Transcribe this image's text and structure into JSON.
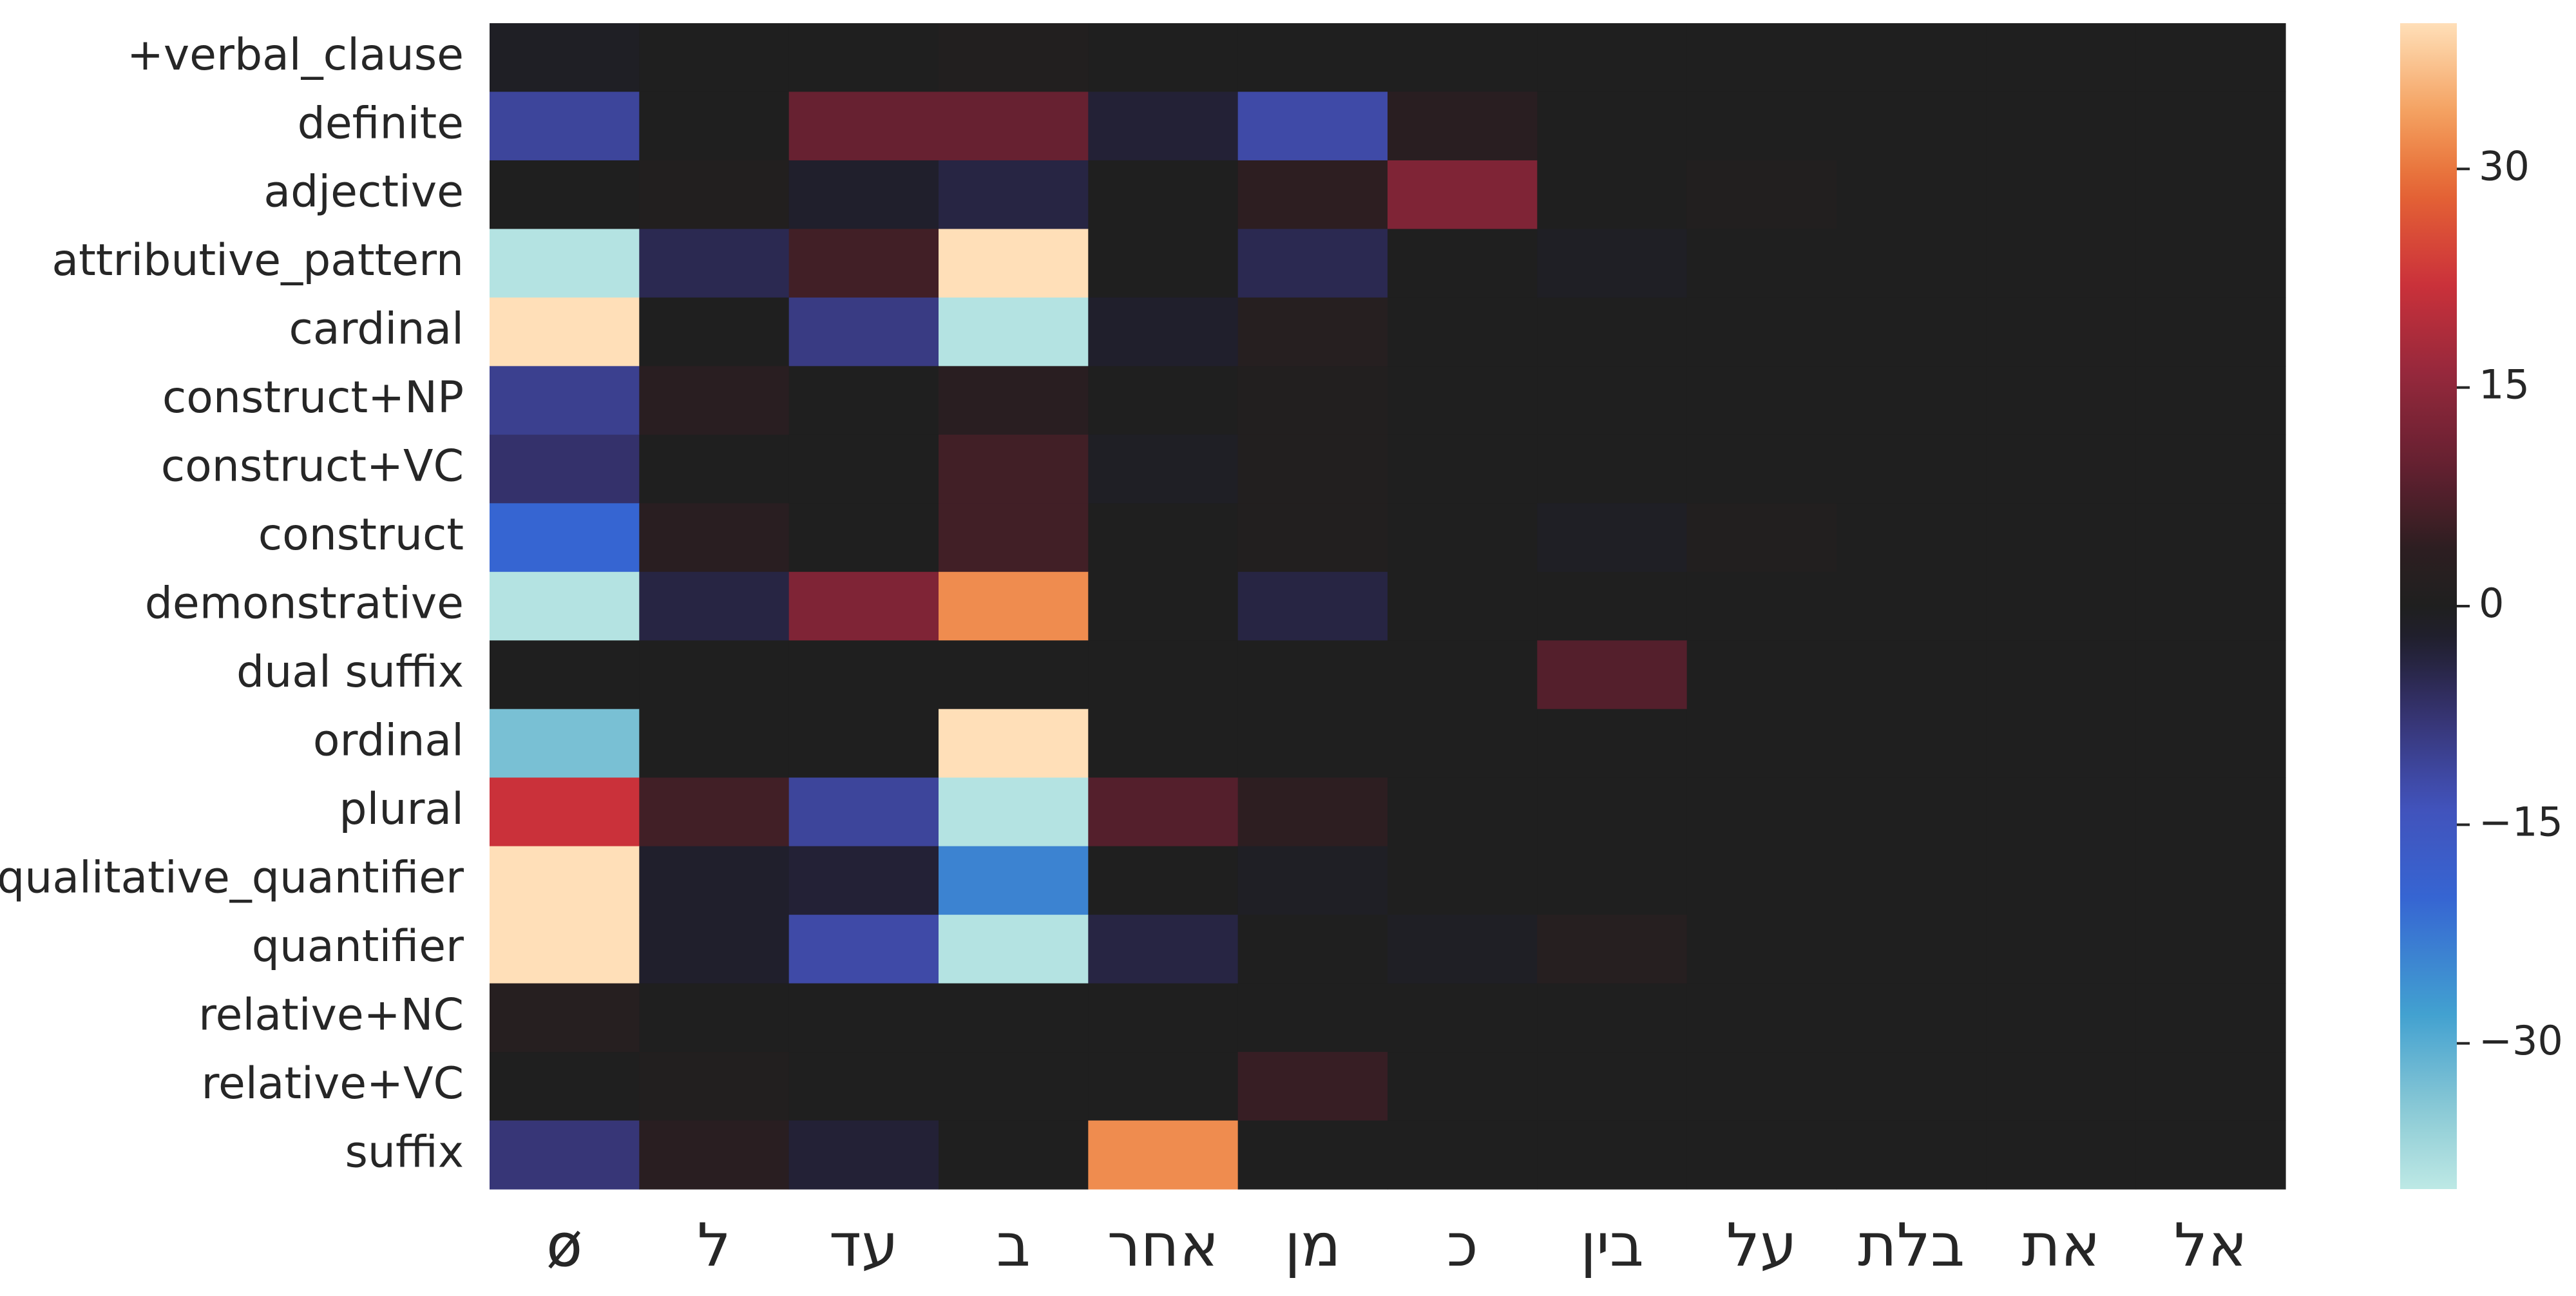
{
  "chart_data": {
    "type": "heatmap",
    "title": "",
    "xlabel": "",
    "ylabel": "",
    "rows": [
      "+verbal_clause",
      "definite",
      "adjective",
      "attributive_pattern",
      "cardinal",
      "construct+NP",
      "construct+VC",
      "construct",
      "demonstrative",
      "dual suffix",
      "ordinal",
      "plural",
      "qualitative_quantifier",
      "quantifier",
      "relative+NC",
      "relative+VC",
      "suffix"
    ],
    "columns": [
      "ø",
      "ל",
      "עד",
      "ב",
      "אחר",
      "מן",
      "כ",
      "בין",
      "על",
      "בלת",
      "את",
      "אל"
    ],
    "values": [
      [
        -1,
        0,
        0,
        1,
        0,
        0,
        0,
        0,
        0,
        0,
        0,
        0
      ],
      [
        -11,
        0,
        10,
        10,
        -3,
        -12,
        3,
        0,
        0,
        0,
        0,
        0
      ],
      [
        0,
        1,
        -2,
        -4,
        0,
        4,
        13,
        0,
        1,
        0,
        0,
        0
      ],
      [
        -39,
        -5,
        6,
        40,
        0,
        -5,
        0,
        -1,
        0,
        0,
        0,
        0
      ],
      [
        40,
        0,
        -9,
        -39,
        -2,
        2,
        0,
        0,
        0,
        0,
        0,
        0
      ],
      [
        -10,
        3,
        0,
        3,
        0,
        1,
        0,
        0,
        0,
        0,
        0,
        0
      ],
      [
        -7,
        0,
        0,
        6,
        -1,
        1,
        0,
        0,
        0,
        0,
        0,
        0
      ],
      [
        -20,
        3,
        0,
        6,
        0,
        1,
        0,
        -1,
        1,
        0,
        0,
        0
      ],
      [
        -39,
        -4,
        13,
        32,
        0,
        -4,
        0,
        0,
        0,
        0,
        0,
        0
      ],
      [
        0,
        0,
        0,
        0,
        0,
        0,
        0,
        8,
        0,
        0,
        0,
        0
      ],
      [
        -33,
        0,
        0,
        40,
        0,
        0,
        0,
        0,
        0,
        0,
        0,
        0
      ],
      [
        22,
        6,
        -11,
        -39,
        8,
        4,
        0,
        0,
        0,
        0,
        0,
        0
      ],
      [
        40,
        -2,
        -3,
        -24,
        0,
        -1,
        0,
        0,
        0,
        0,
        0,
        0
      ],
      [
        40,
        -2,
        -12,
        -39,
        -4,
        0,
        -1,
        2,
        0,
        0,
        0,
        0
      ],
      [
        2,
        0,
        0,
        0,
        0,
        0,
        0,
        0,
        0,
        0,
        0,
        0
      ],
      [
        0,
        1,
        0,
        0,
        0,
        5,
        0,
        0,
        0,
        0,
        0,
        0
      ],
      [
        -8,
        3,
        -3,
        0,
        32,
        0,
        0,
        0,
        0,
        0,
        0,
        0
      ]
    ],
    "colorbar": {
      "vmin": -40,
      "vmax": 40,
      "center": 0,
      "colormap": "icefire",
      "ticks": [
        30,
        15,
        0,
        -15,
        -30
      ],
      "tick_labels": [
        "30",
        "15",
        "0",
        "−15",
        "−30"
      ]
    },
    "grid": false,
    "legend": "colorbar-right"
  },
  "colors": {
    "background": "#ffffff",
    "text": "#262626"
  }
}
